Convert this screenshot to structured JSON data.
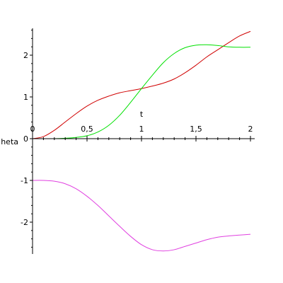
{
  "chart_data": {
    "type": "line",
    "xlabel": "t",
    "ylabel": "heta",
    "xlim": [
      0,
      2
    ],
    "ylim": [
      -2.7,
      2.6
    ],
    "x_ticks": [
      {
        "value": 0,
        "label": "0"
      },
      {
        "value": 0.5,
        "label": "0,5"
      },
      {
        "value": 1,
        "label": "1"
      },
      {
        "value": 1.5,
        "label": "1,5"
      },
      {
        "value": 2,
        "label": "2"
      }
    ],
    "y_ticks": [
      {
        "value": -2,
        "label": "-2"
      },
      {
        "value": -1,
        "label": "-1"
      },
      {
        "value": 0,
        "label": "0"
      },
      {
        "value": 1,
        "label": "1"
      },
      {
        "value": 2,
        "label": "2"
      }
    ],
    "grid": false,
    "series": [
      {
        "color": "#d00000",
        "x": [
          0,
          0.1,
          0.2,
          0.3,
          0.4,
          0.5,
          0.6,
          0.7,
          0.8,
          0.9,
          1.0,
          1.1,
          1.2,
          1.3,
          1.4,
          1.5,
          1.6,
          1.7,
          1.8,
          1.9,
          2.0
        ],
        "y": [
          0,
          0.05,
          0.2,
          0.4,
          0.6,
          0.78,
          0.92,
          1.02,
          1.1,
          1.15,
          1.2,
          1.26,
          1.33,
          1.43,
          1.58,
          1.76,
          1.96,
          2.13,
          2.3,
          2.46,
          2.57
        ]
      },
      {
        "color": "#00e000",
        "x": [
          0,
          0.1,
          0.2,
          0.3,
          0.4,
          0.5,
          0.6,
          0.7,
          0.8,
          0.9,
          1.0,
          1.1,
          1.2,
          1.3,
          1.4,
          1.5,
          1.6,
          1.7,
          1.8,
          1.9,
          2.0
        ],
        "y": [
          0,
          0,
          0,
          0.01,
          0.03,
          0.07,
          0.16,
          0.32,
          0.56,
          0.87,
          1.2,
          1.52,
          1.82,
          2.04,
          2.18,
          2.24,
          2.25,
          2.23,
          2.2,
          2.19,
          2.19
        ]
      },
      {
        "color": "#e040e0",
        "x": [
          0,
          0.1,
          0.2,
          0.3,
          0.4,
          0.5,
          0.6,
          0.7,
          0.8,
          0.9,
          1.0,
          1.1,
          1.2,
          1.3,
          1.4,
          1.5,
          1.6,
          1.7,
          1.8,
          1.9,
          2.0
        ],
        "y": [
          -1,
          -1,
          -1.02,
          -1.08,
          -1.2,
          -1.38,
          -1.6,
          -1.85,
          -2.1,
          -2.34,
          -2.54,
          -2.66,
          -2.69,
          -2.66,
          -2.58,
          -2.5,
          -2.42,
          -2.36,
          -2.33,
          -2.31,
          -2.29
        ]
      }
    ]
  }
}
